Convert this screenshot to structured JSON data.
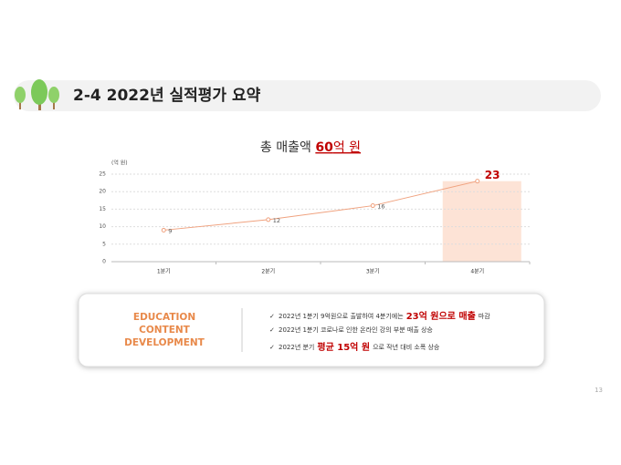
{
  "header": {
    "title": "2-4 2022년 실적평가 요약"
  },
  "chart_data": {
    "type": "line",
    "title_parts": [
      "총 매출액",
      "60",
      "억 원"
    ],
    "unit_label": "(억 원)",
    "categories": [
      "1분기",
      "2분기",
      "3분기",
      "4분기"
    ],
    "values": [
      9,
      12,
      16,
      23
    ],
    "color": "#f0a27f",
    "highlight_color": "#fde3d6",
    "ylim": [
      0,
      25
    ],
    "yticks": [
      0,
      5,
      10,
      15,
      20,
      25
    ],
    "grid": true
  },
  "summary": {
    "label_lines": [
      "EDUCATION",
      "CONTENT",
      "DEVELOPMENT"
    ],
    "bullets": [
      {
        "text": "2022년 1분기 9억원으로 출발하여 4분기에는",
        "emphasis": "23억 원으로 매출",
        "after": "마감"
      },
      {
        "text": "2022년 1분기 코로나로 인한 온라인 강의 부분 매출 상승"
      },
      {
        "text": "2022년 분기",
        "emphasis": "평균 15억 원",
        "after": "으로 작년 대비 소폭 상승"
      }
    ]
  },
  "page_number": "13"
}
